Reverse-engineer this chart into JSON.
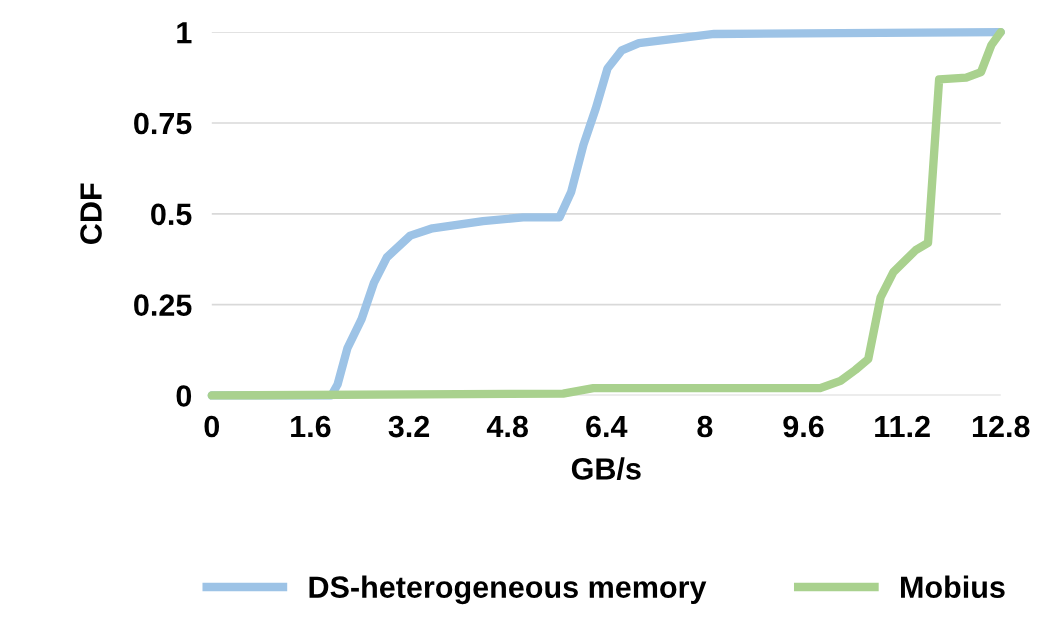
{
  "chart_data": {
    "type": "line",
    "xlabel": "GB/s",
    "ylabel": "CDF",
    "xlim": [
      0,
      12.8
    ],
    "xticks": [
      0,
      1.6,
      3.2,
      4.8,
      6.4,
      8,
      9.6,
      11.2,
      12.8
    ],
    "ylim": [
      0,
      1
    ],
    "yticks": [
      0,
      {
        "value": 0.25,
        "label": "0.25"
      },
      {
        "value": 0.5,
        "label": "0.5"
      },
      {
        "value": 0.75,
        "label": "0.75"
      },
      1
    ],
    "grid": "y",
    "legend": "bottom",
    "marker": "none",
    "line_style": "solid",
    "series": [
      {
        "name": "DS-heterogeneous memory",
        "color": "#9dc3e6",
        "x": [
          0,
          1.94,
          2.04,
          2.2,
          2.43,
          2.63,
          2.84,
          3.22,
          3.58,
          4.4,
          5.05,
          5.64,
          5.83,
          6.03,
          6.23,
          6.42,
          6.65,
          6.93,
          7.66,
          8.15,
          12.8
        ],
        "values": [
          0,
          0,
          0.03,
          0.13,
          0.21,
          0.31,
          0.38,
          0.44,
          0.46,
          0.48,
          0.49,
          0.49,
          0.56,
          0.69,
          0.79,
          0.9,
          0.95,
          0.97,
          0.985,
          0.995,
          1
        ]
      },
      {
        "name": "Mobius",
        "color": "#a9d18e",
        "x": [
          0,
          5.7,
          6.19,
          9.87,
          10.2,
          10.44,
          10.65,
          10.85,
          11.06,
          11.42,
          11.62,
          11.8,
          12.24,
          12.48,
          12.65,
          12.8
        ],
        "values": [
          0,
          0.005,
          0.02,
          0.02,
          0.04,
          0.07,
          0.1,
          0.27,
          0.34,
          0.4,
          0.42,
          0.87,
          0.875,
          0.89,
          0.965,
          1
        ]
      }
    ]
  }
}
